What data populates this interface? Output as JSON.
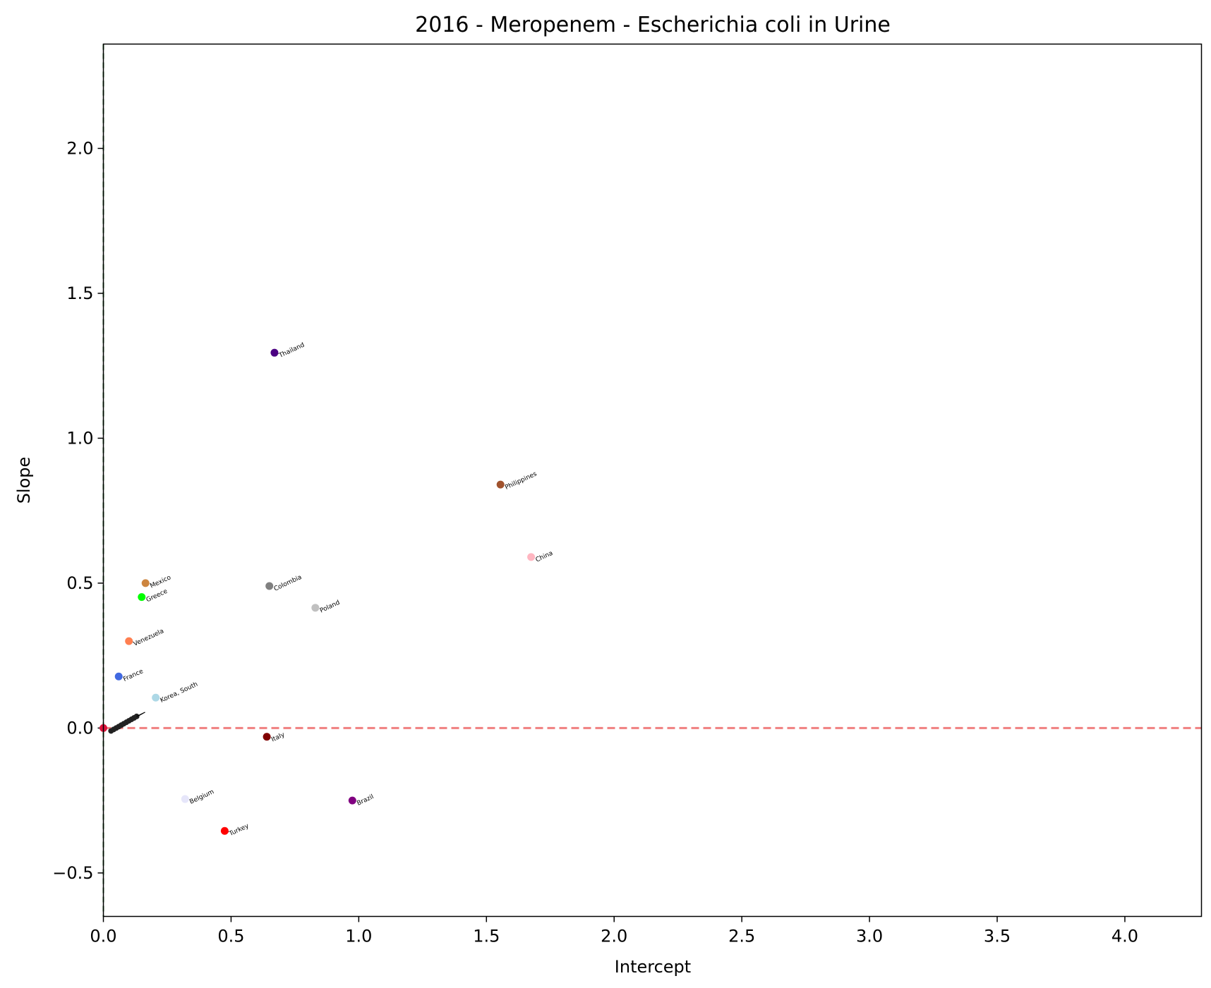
{
  "chart_data": {
    "type": "scatter",
    "title": "2016 - Meropenem - Escherichia coli in Urine",
    "xlabel": "Intercept",
    "ylabel": "Slope",
    "xlim": [
      0,
      4.3
    ],
    "ylim": [
      -0.65,
      2.36
    ],
    "xticks": [
      0.0,
      0.5,
      1.0,
      1.5,
      2.0,
      2.5,
      3.0,
      3.5,
      4.0
    ],
    "xtick_labels": [
      "0.0",
      "0.5",
      "1.0",
      "1.5",
      "2.0",
      "2.5",
      "3.0",
      "3.5",
      "4.0"
    ],
    "yticks": [
      -0.5,
      0.0,
      0.5,
      1.0,
      1.5,
      2.0
    ],
    "ytick_labels": [
      "−0.5",
      "0.0",
      "0.5",
      "1.0",
      "1.5",
      "2.0"
    ],
    "grid": false,
    "reference_lines": [
      {
        "orientation": "horizontal",
        "value": 0.0,
        "style": "dashed",
        "color": "#f08080"
      },
      {
        "orientation": "vertical",
        "value": 0.0,
        "style": "dashed",
        "color": "#2e7d32"
      }
    ],
    "points": [
      {
        "label": "Thailand",
        "x": 0.67,
        "y": 1.295,
        "color": "#4b0082"
      },
      {
        "label": "Philippines",
        "x": 1.555,
        "y": 0.84,
        "color": "#a0522d"
      },
      {
        "label": "China",
        "x": 1.675,
        "y": 0.59,
        "color": "#ffb6c1"
      },
      {
        "label": "Mexico",
        "x": 0.165,
        "y": 0.5,
        "color": "#cd853f"
      },
      {
        "label": "Colombia",
        "x": 0.65,
        "y": 0.49,
        "color": "#808080"
      },
      {
        "label": "Greece",
        "x": 0.15,
        "y": 0.452,
        "color": "#00ff00"
      },
      {
        "label": "Poland",
        "x": 0.83,
        "y": 0.415,
        "color": "#c0c0c0"
      },
      {
        "label": "Venezuela",
        "x": 0.1,
        "y": 0.3,
        "color": "#ff7f50"
      },
      {
        "label": "France",
        "x": 0.06,
        "y": 0.178,
        "color": "#4169e1"
      },
      {
        "label": "Korea, South",
        "x": 0.205,
        "y": 0.105,
        "color": "#add8e6"
      },
      {
        "label": "Italy",
        "x": 0.64,
        "y": -0.03,
        "color": "#800000"
      },
      {
        "label": "Belgium",
        "x": 0.32,
        "y": -0.245,
        "color": "#e6e6fa"
      },
      {
        "label": "Brazil",
        "x": 0.975,
        "y": -0.25,
        "color": "#800080"
      },
      {
        "label": "Turkey",
        "x": 0.475,
        "y": -0.355,
        "color": "#ff0000"
      },
      {
        "label": "",
        "x": 0.0,
        "y": 0.0,
        "color": "#dc143c"
      }
    ],
    "cluster_points": [
      {
        "x": 0.03,
        "y": -0.01
      },
      {
        "x": 0.04,
        "y": -0.005
      },
      {
        "x": 0.05,
        "y": 0.0
      },
      {
        "x": 0.06,
        "y": 0.005
      },
      {
        "x": 0.07,
        "y": 0.01
      },
      {
        "x": 0.08,
        "y": 0.015
      },
      {
        "x": 0.09,
        "y": 0.02
      },
      {
        "x": 0.1,
        "y": 0.025
      },
      {
        "x": 0.11,
        "y": 0.03
      },
      {
        "x": 0.12,
        "y": 0.035
      },
      {
        "x": 0.13,
        "y": 0.04
      }
    ]
  }
}
